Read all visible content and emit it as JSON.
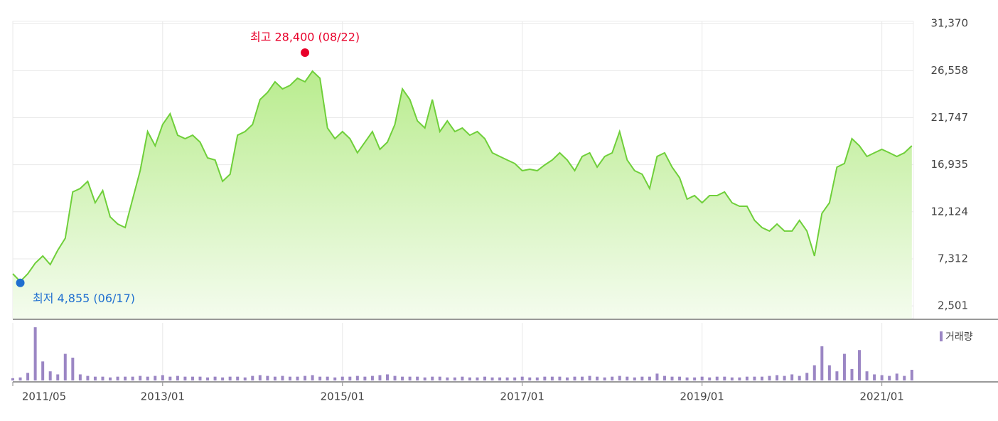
{
  "chart_data": {
    "type": "stock",
    "x": [
      "2011/05",
      "2011/06",
      "2011/07",
      "2011/08",
      "2011/09",
      "2011/10",
      "2011/11",
      "2011/12",
      "2012/01",
      "2012/02",
      "2012/03",
      "2012/04",
      "2012/05",
      "2012/06",
      "2012/07",
      "2012/08",
      "2012/09",
      "2012/10",
      "2012/11",
      "2012/12",
      "2013/01",
      "2013/02",
      "2013/03",
      "2013/04",
      "2013/05",
      "2013/06",
      "2013/07",
      "2013/08",
      "2013/09",
      "2013/10",
      "2013/11",
      "2013/12",
      "2014/01",
      "2014/02",
      "2014/03",
      "2014/04",
      "2014/05",
      "2014/06",
      "2014/07",
      "2014/08",
      "2014/09",
      "2014/10",
      "2014/11",
      "2014/12",
      "2015/01",
      "2015/02",
      "2015/03",
      "2015/04",
      "2015/05",
      "2015/06",
      "2015/07",
      "2015/08",
      "2015/09",
      "2015/10",
      "2015/11",
      "2015/12",
      "2016/01",
      "2016/02",
      "2016/03",
      "2016/04",
      "2016/05",
      "2016/06",
      "2016/07",
      "2016/08",
      "2016/09",
      "2016/10",
      "2016/11",
      "2016/12",
      "2017/01",
      "2017/02",
      "2017/03",
      "2017/04",
      "2017/05",
      "2017/06",
      "2017/07",
      "2017/08",
      "2017/09",
      "2017/10",
      "2017/11",
      "2017/12",
      "2018/01",
      "2018/02",
      "2018/03",
      "2018/04",
      "2018/05",
      "2018/06",
      "2018/07",
      "2018/08",
      "2018/09",
      "2018/10",
      "2018/11",
      "2018/12",
      "2019/01",
      "2019/02",
      "2019/03",
      "2019/04",
      "2019/05",
      "2019/06",
      "2019/07",
      "2019/08",
      "2019/09",
      "2019/10",
      "2019/11",
      "2019/12",
      "2020/01",
      "2020/02",
      "2020/03",
      "2020/04",
      "2020/05",
      "2020/06",
      "2020/07",
      "2020/08",
      "2020/09",
      "2020/10",
      "2020/11",
      "2020/12",
      "2021/01",
      "2021/02",
      "2021/03",
      "2021/04",
      "2021/05"
    ],
    "series": [
      {
        "color": "#6fcf3a",
        "values": [
          5780,
          5000,
          5780,
          6870,
          7600,
          6730,
          8180,
          9420,
          14150,
          14510,
          15240,
          13050,
          14290,
          11600,
          10870,
          10510,
          13420,
          16330,
          20330,
          18870,
          21050,
          22150,
          19960,
          19600,
          19960,
          19240,
          17640,
          17420,
          15240,
          15960,
          19960,
          20330,
          21050,
          23600,
          24330,
          25420,
          24690,
          25050,
          25780,
          25420,
          26510,
          25780,
          20690,
          19600,
          20330,
          19600,
          18150,
          19240,
          20330,
          18510,
          19240,
          21050,
          24690,
          23600,
          21420,
          20690,
          23600,
          20330,
          21420,
          20330,
          20690,
          19960,
          20330,
          19600,
          18150,
          17780,
          17420,
          17060,
          16330,
          16470,
          16330,
          16910,
          17420,
          18150,
          17420,
          16330,
          17780,
          18150,
          16690,
          17780,
          18150,
          20330,
          17420,
          16330,
          15960,
          14510,
          17780,
          18150,
          16690,
          15600,
          13420,
          13780,
          13050,
          13780,
          13780,
          14150,
          13050,
          12690,
          12690,
          11240,
          10510,
          10150,
          10870,
          10150,
          10150,
          11240,
          10150,
          7600,
          11960,
          13050,
          16690,
          17060,
          19600,
          18870,
          17780,
          18150,
          18510,
          18150,
          17780,
          18150,
          18870
        ]
      },
      {
        "name": "거래량",
        "color": "#9b86c4",
        "panel": "volume",
        "values": [
          3,
          4,
          10,
          70,
          25,
          12,
          8,
          35,
          30,
          8,
          6,
          5,
          5,
          4,
          5,
          5,
          5,
          6,
          5,
          6,
          7,
          5,
          6,
          5,
          5,
          5,
          4,
          5,
          4,
          5,
          5,
          4,
          6,
          7,
          6,
          5,
          6,
          5,
          5,
          6,
          7,
          5,
          5,
          4,
          5,
          5,
          6,
          5,
          6,
          7,
          8,
          6,
          5,
          5,
          5,
          4,
          5,
          5,
          4,
          4,
          5,
          4,
          4,
          5,
          4,
          4,
          4,
          4,
          5,
          4,
          4,
          5,
          5,
          5,
          4,
          5,
          5,
          6,
          5,
          4,
          5,
          6,
          5,
          4,
          5,
          5,
          9,
          6,
          5,
          5,
          4,
          4,
          5,
          4,
          5,
          5,
          4,
          4,
          5,
          5,
          5,
          6,
          7,
          6,
          8,
          6,
          10,
          20,
          45,
          20,
          12,
          35,
          15,
          40,
          12,
          8,
          7,
          6,
          9,
          6,
          14
        ]
      }
    ],
    "xticks": [
      "2011/05",
      "2013/01",
      "2015/01",
      "2017/01",
      "2019/01",
      "2021/01"
    ],
    "ylim": [
      1200,
      31600
    ],
    "yticks": [
      {
        "value": 2501,
        "label": "2,501"
      },
      {
        "value": 7312,
        "label": "7,312"
      },
      {
        "value": 12124,
        "label": "12,124"
      },
      {
        "value": 16935,
        "label": "16,935"
      },
      {
        "value": 21747,
        "label": "21,747"
      },
      {
        "value": 26558,
        "label": "26,558"
      },
      {
        "value": 31370,
        "label": "31,370"
      }
    ],
    "volume_ylim": [
      0,
      72
    ],
    "grid": true,
    "annotations": [
      {
        "text": "최고 28,400 (08/22)",
        "value": 28400,
        "x": "2014/08",
        "color": "#e8002a",
        "position": "above"
      },
      {
        "text": "최저 4,855 (06/17)",
        "value": 4855,
        "x": "2011/06",
        "color": "#1f6fd0",
        "position": "below"
      }
    ]
  }
}
